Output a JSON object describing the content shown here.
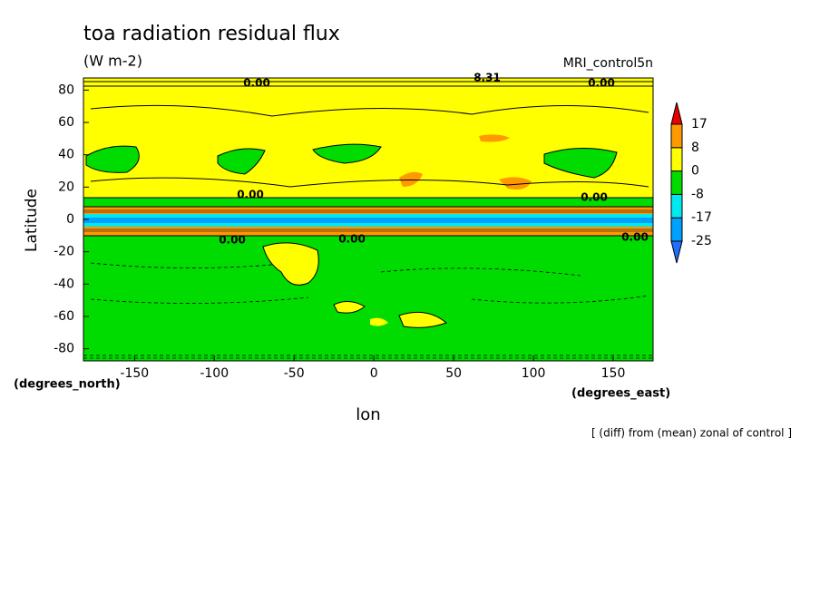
{
  "chart_data": {
    "type": "contour",
    "title": "toa radiation residual flux",
    "subtitle": "(W m-2)",
    "dataset_label": "MRI_control5n",
    "x_label": "lon",
    "x_unit": "(degrees_east)",
    "y_label": "Latitude",
    "y_unit": "(degrees_north)",
    "note": "[ (diff) from (mean) zonal of control ]",
    "xlim": [
      -182,
      175
    ],
    "xticks": [
      -150,
      -100,
      -50,
      0,
      50,
      100,
      150
    ],
    "ylim": [
      -87.5,
      87.5
    ],
    "yticks": [
      -80,
      -60,
      -40,
      -20,
      0,
      20,
      40,
      60,
      80
    ],
    "levels": [
      -25,
      -17,
      -8,
      0,
      8,
      17
    ],
    "colors": [
      "#1e6eff",
      "#00a0ff",
      "#00e8f0",
      "#00dc00",
      "#ffff00",
      "#ff9900",
      "#e60000"
    ],
    "contour_labels": [
      "0.00",
      "8.31",
      "0.00",
      "0.00",
      "0.00",
      "0.00",
      "0.00",
      "0.00"
    ]
  }
}
